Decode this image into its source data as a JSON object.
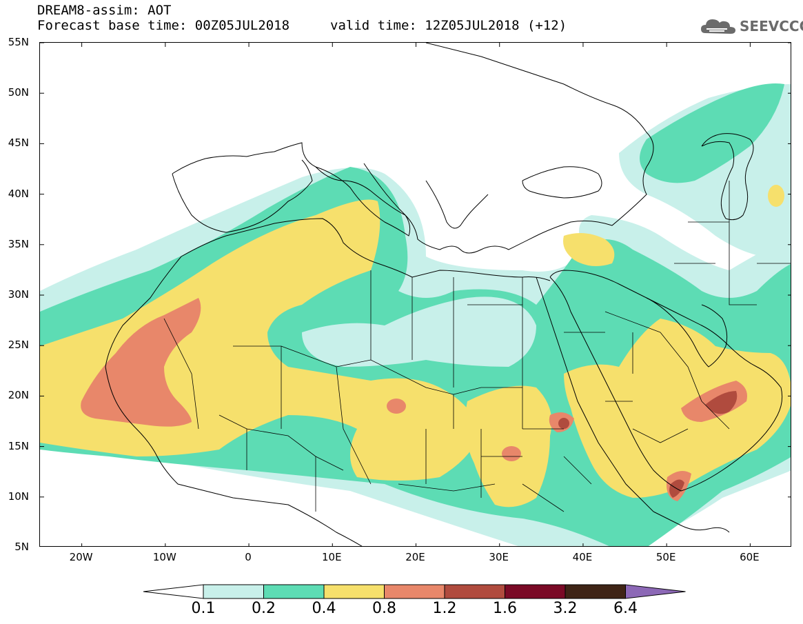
{
  "header": {
    "title": "DREAM8-assim: AOT",
    "base_time": "Forecast base time: 00Z05JUL2018",
    "valid_time": "valid time: 12Z05JUL2018 (+12)",
    "logo_text": "SEEVCCC"
  },
  "map": {
    "projection": "equirectangular",
    "lon_range": [
      -25,
      65
    ],
    "lat_range": [
      5,
      55
    ],
    "y_axis_labels": [
      "55N",
      "50N",
      "45N",
      "40N",
      "35N",
      "30N",
      "25N",
      "20N",
      "15N",
      "10N",
      "5N"
    ],
    "x_axis_labels": [
      "20W",
      "10W",
      "0",
      "10E",
      "20E",
      "30E",
      "40E",
      "50E",
      "60E"
    ]
  },
  "legend": {
    "thresholds": [
      "0.1",
      "0.2",
      "0.4",
      "0.8",
      "1.2",
      "1.6",
      "3.2",
      "6.4"
    ],
    "colors": [
      "#c8f0ea",
      "#5ddcb4",
      "#f6e06c",
      "#e8876a",
      "#b04b3e",
      "#7a0a26",
      "#3f2416",
      "#8c68b6"
    ],
    "below_color": "#ffffff"
  }
}
